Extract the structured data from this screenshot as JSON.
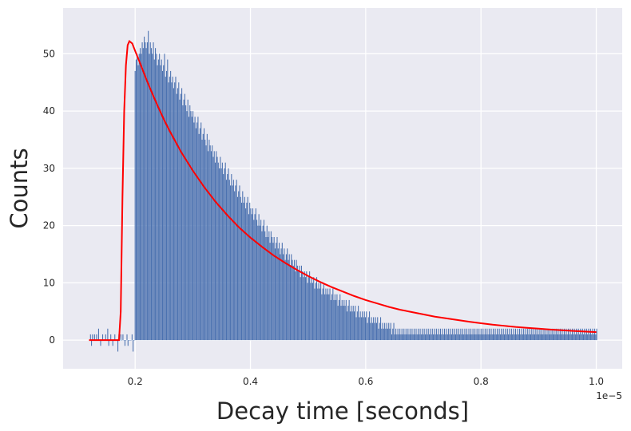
{
  "chart_data": {
    "type": "bar",
    "title": "",
    "xlabel": "Decay time [seconds]",
    "ylabel": "Counts",
    "x_scale_label": "1e−5",
    "xlim": [
      0.075,
      1.045
    ],
    "ylim": [
      -5,
      58
    ],
    "x_ticks": [
      0.2,
      0.4,
      0.6,
      0.8,
      1.0
    ],
    "x_tick_labels": [
      "0.2",
      "0.4",
      "0.6",
      "0.8",
      "1.0"
    ],
    "y_ticks": [
      0,
      10,
      20,
      30,
      40,
      50
    ],
    "y_tick_labels": [
      "0",
      "10",
      "20",
      "30",
      "40",
      "50"
    ],
    "grid": true,
    "legend": "none",
    "colors": {
      "background": "#eaeaf2",
      "grid": "#ffffff",
      "bars": "#4c72b0",
      "fit": "#ff0000"
    },
    "bin_range": [
      0.12,
      1.0
    ],
    "bin_count": 500,
    "series": [
      {
        "type": "bar",
        "description_values": "binned counts",
        "x_step": 0.00176,
        "x_start": 0.12,
        "values": [
          0,
          1,
          -1,
          1,
          0,
          1,
          0,
          1,
          0,
          2,
          0,
          -1,
          0,
          1,
          0,
          0,
          1,
          0,
          2,
          -1,
          0,
          1,
          0,
          -1,
          0,
          1,
          0,
          0,
          -2,
          1,
          0,
          1,
          0,
          1,
          0,
          -1,
          0,
          1,
          -1,
          0,
          0,
          0,
          1,
          -2,
          0,
          47,
          49,
          50,
          48,
          50,
          51,
          50,
          52,
          51,
          53,
          52,
          51,
          52,
          54,
          50,
          52,
          51,
          50,
          52,
          49,
          51,
          50,
          48,
          49,
          50,
          48,
          49,
          47,
          48,
          50,
          46,
          47,
          49,
          45,
          46,
          47,
          45,
          46,
          44,
          45,
          46,
          43,
          44,
          45,
          42,
          43,
          44,
          41,
          42,
          43,
          41,
          40,
          42,
          39,
          41,
          40,
          39,
          40,
          38,
          39,
          37,
          38,
          39,
          36,
          37,
          38,
          35,
          36,
          37,
          35,
          34,
          36,
          33,
          35,
          34,
          33,
          34,
          32,
          33,
          31,
          33,
          32,
          31,
          30,
          32,
          30,
          31,
          29,
          30,
          31,
          28,
          29,
          30,
          28,
          27,
          29,
          27,
          28,
          26,
          27,
          28,
          25,
          26,
          27,
          25,
          24,
          26,
          24,
          25,
          23,
          24,
          25,
          22,
          24,
          23,
          22,
          23,
          21,
          22,
          23,
          21,
          20,
          22,
          20,
          21,
          19,
          20,
          21,
          19,
          18,
          20,
          18,
          19,
          17,
          19,
          18,
          17,
          18,
          16,
          17,
          18,
          16,
          17,
          15,
          16,
          17,
          15,
          16,
          14,
          15,
          16,
          14,
          15,
          13,
          15,
          14,
          13,
          14,
          12,
          14,
          13,
          12,
          13,
          11,
          13,
          12,
          11,
          12,
          11,
          12,
          10,
          11,
          12,
          10,
          11,
          10,
          11,
          9,
          10,
          11,
          9,
          10,
          9,
          10,
          8,
          9,
          10,
          8,
          9,
          8,
          9,
          8,
          9,
          7,
          8,
          9,
          7,
          8,
          7,
          8,
          6,
          7,
          8,
          6,
          7,
          6,
          7,
          6,
          7,
          5,
          6,
          7,
          5,
          6,
          5,
          6,
          5,
          6,
          4,
          5,
          6,
          4,
          5,
          4,
          5,
          4,
          5,
          4,
          5,
          3,
          4,
          5,
          3,
          4,
          3,
          4,
          3,
          4,
          3,
          4,
          2,
          3,
          4,
          2,
          3,
          2,
          3,
          2,
          3,
          2,
          3,
          2,
          3,
          1,
          2,
          3,
          1,
          2,
          1,
          2,
          1,
          2,
          1,
          2,
          1,
          2,
          1,
          2,
          1,
          2,
          1,
          2,
          1,
          2,
          1,
          2,
          1,
          2,
          1,
          2,
          1,
          2,
          1,
          2,
          1,
          2,
          1,
          2,
          1,
          2,
          1,
          2,
          1,
          2,
          1,
          2,
          1,
          2,
          1,
          2,
          1,
          2,
          1,
          2,
          1,
          2,
          1,
          2,
          1,
          2,
          1,
          2,
          1,
          2,
          1,
          2,
          1,
          2,
          1,
          2,
          1,
          2,
          1,
          2,
          1,
          2,
          1,
          2,
          1,
          2,
          1,
          2,
          1,
          2,
          1,
          2,
          1,
          2,
          1,
          2,
          1,
          2,
          1,
          2,
          1,
          2,
          1,
          2,
          1,
          2,
          1,
          2,
          1,
          2,
          1,
          2,
          1,
          2,
          1,
          2,
          1,
          2,
          1,
          2,
          1,
          2,
          1,
          2,
          1,
          2,
          1,
          2,
          1,
          2,
          1,
          2,
          1,
          2,
          1,
          2,
          1,
          2,
          1,
          2,
          1,
          2,
          1,
          2,
          1,
          2,
          1,
          2,
          1,
          2,
          1,
          2,
          1,
          2,
          1,
          2,
          1,
          2,
          1,
          2,
          1,
          2,
          1,
          2,
          1,
          2,
          1,
          2,
          1,
          2,
          1,
          2,
          1,
          2,
          1,
          2,
          1,
          2,
          1,
          2,
          1,
          2,
          1,
          2,
          1,
          2,
          1,
          2,
          1,
          2,
          1,
          2,
          1,
          2,
          1,
          2,
          1,
          2,
          1,
          2,
          1,
          2,
          1,
          2,
          1,
          2,
          1,
          2,
          1,
          2,
          1,
          2,
          1,
          2,
          1,
          2,
          1,
          2,
          1,
          2,
          1,
          2,
          1,
          2,
          1,
          2,
          1,
          2,
          1,
          2,
          1
        ]
      },
      {
        "type": "line",
        "x": [
          0.12,
          0.14,
          0.16,
          0.172,
          0.175,
          0.178,
          0.181,
          0.184,
          0.187,
          0.19,
          0.195,
          0.2,
          0.21,
          0.22,
          0.23,
          0.24,
          0.25,
          0.26,
          0.28,
          0.3,
          0.32,
          0.34,
          0.36,
          0.38,
          0.4,
          0.42,
          0.44,
          0.46,
          0.48,
          0.5,
          0.52,
          0.54,
          0.56,
          0.58,
          0.6,
          0.62,
          0.64,
          0.66,
          0.68,
          0.7,
          0.72,
          0.74,
          0.76,
          0.78,
          0.8,
          0.82,
          0.84,
          0.86,
          0.88,
          0.9,
          0.92,
          0.94,
          0.96,
          0.98,
          1.0
        ],
        "y": [
          0,
          0,
          0,
          0,
          5,
          25,
          40,
          48,
          51.5,
          52.2,
          51.8,
          50.5,
          48.0,
          45.4,
          43.0,
          40.7,
          38.5,
          36.5,
          32.8,
          29.6,
          26.7,
          24.1,
          21.8,
          19.7,
          17.9,
          16.3,
          14.8,
          13.5,
          12.3,
          11.2,
          10.2,
          9.3,
          8.5,
          7.7,
          7.0,
          6.4,
          5.8,
          5.3,
          4.9,
          4.5,
          4.1,
          3.8,
          3.5,
          3.2,
          2.95,
          2.7,
          2.5,
          2.3,
          2.15,
          2.0,
          1.85,
          1.72,
          1.6,
          1.5,
          1.4
        ]
      }
    ]
  }
}
